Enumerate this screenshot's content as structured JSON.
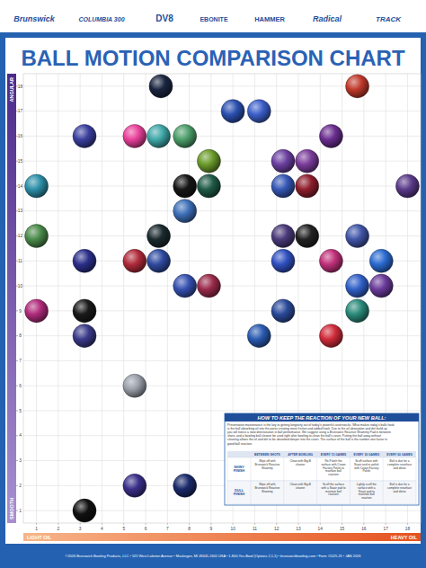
{
  "header": {
    "brands": [
      "Brunswick",
      "COLUMBIA 300",
      "DV8",
      "EBONITE",
      "HAMMER",
      "Radical",
      "TRACK"
    ]
  },
  "chart_data": {
    "type": "scatter",
    "title": "BALL MOTION COMPARISON CHART",
    "x_axis_labels": {
      "low": "LIGHT OIL",
      "high": "HEAVY OIL"
    },
    "y_axis_labels": {
      "low": "SMOOTH",
      "high": "ANGULAR"
    },
    "x": [
      6.7,
      15.7,
      10.0,
      11.2,
      3.2,
      5.5,
      6.6,
      7.8,
      14.5,
      8.9,
      12.3,
      13.4,
      1.0,
      7.8,
      8.9,
      12.3,
      13.4,
      18.0,
      7.8,
      1.0,
      6.6,
      12.3,
      13.4,
      15.7,
      3.2,
      5.5,
      6.6,
      12.3,
      14.5,
      16.8,
      7.8,
      8.9,
      15.7,
      16.8,
      1.0,
      3.2,
      12.3,
      15.7,
      3.2,
      11.2,
      14.5,
      5.5,
      5.5,
      7.8,
      3.2
    ],
    "values": [
      18,
      18,
      17,
      17,
      16,
      16,
      16,
      16,
      16,
      15,
      15,
      15,
      14,
      14,
      14,
      14,
      14,
      14,
      13,
      12,
      12,
      12,
      12,
      12,
      11,
      11,
      11,
      11,
      11,
      11,
      10,
      10,
      10,
      10,
      9,
      9,
      9,
      9,
      8,
      8,
      8,
      6,
      2,
      2,
      1
    ],
    "colors": [
      "#1a2540",
      "#c0392b",
      "#2a4fb0",
      "#3b5fc9",
      "#3a3f9e",
      "#e8409a",
      "#3fa7a8",
      "#4c9e6a",
      "#6a2d8f",
      "#6a9a2a",
      "#6b3fa0",
      "#7a3c9a",
      "#2c8fa8",
      "#161616",
      "#1f5a46",
      "#3557b5",
      "#8e1e2c",
      "#5a3a8a",
      "#3d6fb8",
      "#4a8a4a",
      "#1b2a2e",
      "#4a3a7a",
      "#222222",
      "#4055a8",
      "#2b2f8a",
      "#b02a3a",
      "#2f4aa0",
      "#2f50c0",
      "#c0307a",
      "#2a6ad0",
      "#3550b0",
      "#9a2a4a",
      "#3060c8",
      "#6a3a9a",
      "#b02a7a",
      "#1a1a1a",
      "#2a4a9a",
      "#2a8a7a",
      "#3a3a8a",
      "#2a5ab0",
      "#d02a3a",
      "#9aa0aa",
      "#3a2f8a",
      "#1a2a6a",
      "#111111"
    ],
    "marker": "circle",
    "xlim": [
      0.4,
      18.6
    ],
    "ylim": [
      0.5,
      18.5
    ],
    "xticks": [
      1,
      2,
      3,
      4,
      5,
      6,
      7,
      8,
      9,
      10,
      11,
      12,
      13,
      14,
      15,
      16,
      17,
      18
    ],
    "yticks": [
      1,
      2,
      3,
      4,
      5,
      6,
      7,
      8,
      9,
      10,
      11,
      12,
      13,
      14,
      15,
      16,
      17,
      18
    ],
    "grid": true
  },
  "table": {
    "title": "HOW TO KEEP THE REACTION OF YOUR NEW BALL:",
    "intro": "Preventative maintenance is the key to getting longevity out of today's powerful coverstocks. What makes today's balls hook is the ball absorbing oil into the pores creating more friction and added hook. Due to the oil absorption and dirt build up you will notice a slow deterioration in ball performance. We suggest using a Brunswick Reactive Shammy Pad in between shots, and a bowling ball cleaner be used right after bowling to clean the ball's cover. Putting the ball away without cleaning allows the oil and dirt to be absorbed deeper into the cover. The surface of the ball is the number one factor in good ball reaction.",
    "columns": [
      "BETWEEN SHOTS",
      "AFTER BOWLING",
      "EVERY 15 GAMES",
      "EVERY 30 GAMES",
      "EVERY 60 GAMES"
    ],
    "rows": [
      {
        "label": "SHINY FINISH",
        "cells": [
          "Wipe off with Brunswick Reactive Shammy",
          "Clean with Big-B cleaner",
          "Re-Polish the surface with Crown Factory Polish to maintain ball reaction",
          "Scuff surface with Siaair and re-polish with Crown Factory Polish",
          "Ball is due for a complete resurface and detox"
        ]
      },
      {
        "label": "DULL FINISH",
        "cells": [
          "Wipe off with Brunswick Reactive Shammy",
          "Clean with Big-B cleaner",
          "Scuff the surface with a Siaair pad to maintain ball reaction",
          "Lightly scuff the surface with a Siaair pad to maintain ball reaction",
          "Ball is due for a complete resurface and detox"
        ]
      }
    ]
  },
  "footer": "©2026 Brunswick Bowling Products, LLC • 525 West Laketon Avenue • Muskegon, MI 49441-2601 USA • 1-800-Yes-Bowl (Options 2,1,1) • brunswickbowling.com • Form #1125-25 • JAN 2026"
}
